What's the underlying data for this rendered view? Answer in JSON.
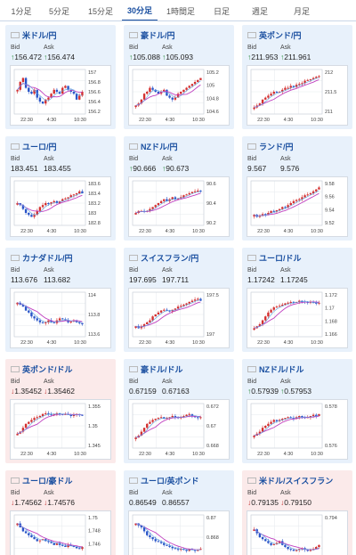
{
  "tabs": [
    {
      "label": "1分足",
      "active": false
    },
    {
      "label": "5分足",
      "active": false
    },
    {
      "label": "15分足",
      "active": false
    },
    {
      "label": "30分足",
      "active": true
    },
    {
      "label": "1時間足",
      "active": false
    },
    {
      "label": "日足",
      "active": false
    },
    {
      "label": "週足",
      "active": false
    },
    {
      "label": "月足",
      "active": false
    }
  ],
  "labels": {
    "bid": "Bid",
    "ask": "Ask"
  },
  "cards": [
    {
      "name": "米ドル/円",
      "bid": "156.472",
      "ask": "156.474",
      "dir": "up",
      "flag": "us",
      "ticks": [
        "157",
        "156.8",
        "156.6",
        "156.4",
        "156.2"
      ],
      "times": [
        "22:30",
        "4:30",
        "10:30"
      ]
    },
    {
      "name": "豪ドル/円",
      "bid": "105.088",
      "ask": "105.093",
      "dir": "up",
      "flag": "au",
      "ticks": [
        "105.2",
        "105",
        "104.8",
        "104.6"
      ],
      "times": [
        "22:30",
        "4:30",
        "10:30"
      ]
    },
    {
      "name": "英ポンド/円",
      "bid": "211.953",
      "ask": "211.961",
      "dir": "up",
      "flag": "uk",
      "ticks": [
        "212",
        "211.5",
        "211"
      ],
      "times": [
        "22:30",
        "4:30",
        "10:30"
      ]
    },
    {
      "name": "ユーロ/円",
      "bid": "183.451",
      "ask": "183.455",
      "dir": "none",
      "flag": "eu",
      "ticks": [
        "183.6",
        "183.4",
        "183.2",
        "183",
        "182.8"
      ],
      "times": [
        "22:30",
        "4:30",
        "10:30"
      ]
    },
    {
      "name": "NZドル/円",
      "bid": "90.666",
      "ask": "90.673",
      "dir": "up",
      "flag": "nz",
      "ticks": [
        "90.6",
        "90.4",
        "90.2"
      ],
      "times": [
        "22:30",
        "4:30",
        "10:30"
      ]
    },
    {
      "name": "ランド/円",
      "bid": "9.567",
      "ask": "9.576",
      "dir": "none",
      "flag": "za",
      "ticks": [
        "9.58",
        "9.56",
        "9.54",
        "9.52"
      ],
      "times": [
        "22:30",
        "4:30",
        "10:30"
      ]
    },
    {
      "name": "カナダドル/円",
      "bid": "113.676",
      "ask": "113.682",
      "dir": "none",
      "flag": "ca",
      "ticks": [
        "114",
        "113.8",
        "113.6"
      ],
      "times": [
        "22:30",
        "4:30",
        "10:30"
      ]
    },
    {
      "name": "スイスフラン/円",
      "bid": "197.695",
      "ask": "197.711",
      "dir": "none",
      "flag": "ch",
      "ticks": [
        "197.5",
        "197"
      ],
      "times": [
        "22:30",
        "4:30",
        "10:30"
      ]
    },
    {
      "name": "ユーロ/ドル",
      "bid": "1.17242",
      "ask": "1.17245",
      "dir": "none",
      "flag": "eu",
      "ticks": [
        "1.172",
        "1.17",
        "1.168",
        "1.166"
      ],
      "times": [
        "22:30",
        "4:30",
        "10:30"
      ]
    },
    {
      "name": "英ポンド/ドル",
      "bid": "1.35452",
      "ask": "1.35462",
      "dir": "down",
      "flag": "uk",
      "ticks": [
        "1.355",
        "1.35",
        "1.345"
      ],
      "times": [
        "22:30",
        "4:30",
        "10:30"
      ]
    },
    {
      "name": "豪ドル/ドル",
      "bid": "0.67159",
      "ask": "0.67163",
      "dir": "none",
      "flag": "au",
      "ticks": [
        "0.672",
        "0.67",
        "0.668"
      ],
      "times": [
        "22:30",
        "4:30",
        "10:30"
      ]
    },
    {
      "name": "NZドル/ドル",
      "bid": "0.57939",
      "ask": "0.57953",
      "dir": "up",
      "flag": "nz",
      "ticks": [
        "0.578",
        "0.576"
      ],
      "times": [
        "22:30",
        "4:30",
        "10:30"
      ]
    },
    {
      "name": "ユーロ/豪ドル",
      "bid": "1.74562",
      "ask": "1.74576",
      "dir": "down",
      "flag": "eu",
      "ticks": [
        "1.75",
        "1.748",
        "1.746",
        "1.744"
      ],
      "times": [
        "22:30",
        "4:30",
        "10:30"
      ]
    },
    {
      "name": "ユーロ/英ポンド",
      "bid": "0.86549",
      "ask": "0.86557",
      "dir": "none",
      "flag": "eu",
      "ticks": [
        "0.87",
        "0.868",
        "0.866"
      ],
      "times": [
        "22:30",
        "4:30",
        "10:30"
      ]
    },
    {
      "name": "米ドル/スイスフラン",
      "bid": "0.79135",
      "ask": "0.79150",
      "dir": "down",
      "flag": "us",
      "ticks": [
        "0.794",
        "0.792"
      ],
      "times": [
        "22:30",
        "4:30",
        "10:30"
      ]
    }
  ],
  "colors": {
    "up_bg": "#e8f1fb",
    "down_bg": "#fbeaea",
    "candle_up": "#d43030",
    "candle_down": "#2a55c8",
    "ma": "#c040c0",
    "accent": "#1a4fa0"
  }
}
